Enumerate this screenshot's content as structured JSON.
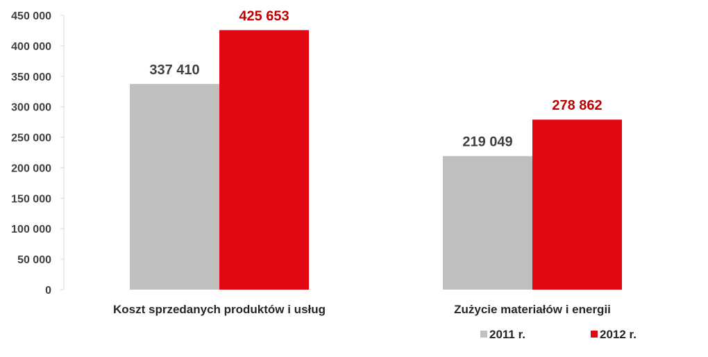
{
  "chart_data": {
    "type": "bar",
    "categories": [
      "Koszt sprzedanych produktów i usług",
      "Zużycie materiałów i energii"
    ],
    "series": [
      {
        "name": "2011 r.",
        "values": [
          337410,
          219049
        ],
        "labels": [
          "337 410",
          "219 049"
        ],
        "color": "#bfbfbf",
        "label_color": "#404040"
      },
      {
        "name": "2012 r.",
        "values": [
          425653,
          278862
        ],
        "labels": [
          "425 653",
          "278 862"
        ],
        "color": "#e30613",
        "label_color": "#c00000"
      }
    ],
    "ylim": [
      0,
      450000
    ],
    "yticks": [
      0,
      50000,
      100000,
      150000,
      200000,
      250000,
      300000,
      350000,
      400000,
      450000
    ],
    "ytick_labels": [
      "0",
      "50 000",
      "100 000",
      "150 000",
      "200 000",
      "250 000",
      "300 000",
      "350 000",
      "400 000",
      "450 000"
    ],
    "grid": false,
    "legend_position": "bottom-right",
    "title": "",
    "xlabel": "",
    "ylabel": ""
  }
}
